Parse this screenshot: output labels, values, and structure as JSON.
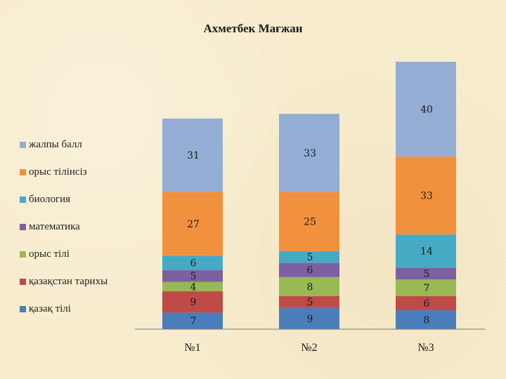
{
  "chart_data": {
    "type": "stacked-bar",
    "title": "Ахметбек Мағжан",
    "categories": [
      "№1",
      "№2",
      "№3"
    ],
    "series": [
      {
        "name": "қазақ тілі",
        "color": "#4a7ebb",
        "values": [
          7,
          9,
          8
        ]
      },
      {
        "name": "қазақстан тарихы",
        "color": "#be4b48",
        "values": [
          9,
          5,
          6
        ]
      },
      {
        "name": "орыс тілі",
        "color": "#98b954",
        "values": [
          4,
          8,
          7
        ]
      },
      {
        "name": "математика",
        "color": "#7d60a0",
        "values": [
          5,
          6,
          5
        ]
      },
      {
        "name": "биология",
        "color": "#46aac5",
        "values": [
          6,
          5,
          14
        ]
      },
      {
        "name": "орыс тілінсіз",
        "color": "#f2913d",
        "values": [
          27,
          25,
          33
        ]
      },
      {
        "name": "жалпы балл",
        "color": "#94add4",
        "values": [
          31,
          33,
          40
        ]
      }
    ],
    "legend_position": "left",
    "grid": false,
    "ylim": [
      0,
      113
    ]
  }
}
